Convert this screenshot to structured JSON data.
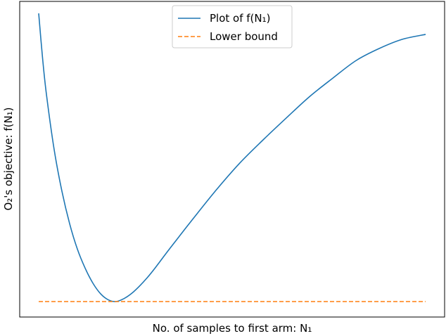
{
  "chart_data": {
    "type": "line",
    "xlabel": "No. of samples to first arm: N₁",
    "ylabel": "O₂'s objective: f(N₁)",
    "xticks": [],
    "yticks": [],
    "grid": false,
    "legend_position": "top-center",
    "xlim": [
      0,
      1
    ],
    "ylim": [
      0,
      1
    ],
    "x": [
      0.0,
      0.01,
      0.02,
      0.04,
      0.06,
      0.08,
      0.1,
      0.12,
      0.14,
      0.16,
      0.18,
      0.2,
      0.22,
      0.24,
      0.26,
      0.28,
      0.3,
      0.34,
      0.4,
      0.46,
      0.52,
      0.58,
      0.64,
      0.7,
      0.76,
      0.82,
      0.88,
      0.94,
      1.0
    ],
    "series": [
      {
        "name": "Plot of f(N₁)",
        "style": "solid",
        "color": "#1f77b4",
        "values": [
          1.0,
          0.845,
          0.719,
          0.527,
          0.383,
          0.27,
          0.182,
          0.116,
          0.064,
          0.027,
          0.006,
          0.0,
          0.01,
          0.028,
          0.053,
          0.082,
          0.115,
          0.186,
          0.289,
          0.389,
          0.481,
          0.561,
          0.637,
          0.711,
          0.775,
          0.836,
          0.878,
          0.91,
          0.927
        ]
      },
      {
        "name": "Lower bound",
        "style": "dashed",
        "color": "#ff7f0e",
        "values": [
          0.0,
          0.0,
          0.0,
          0.0,
          0.0,
          0.0,
          0.0,
          0.0,
          0.0,
          0.0,
          0.0,
          0.0,
          0.0,
          0.0,
          0.0,
          0.0,
          0.0,
          0.0,
          0.0,
          0.0,
          0.0,
          0.0,
          0.0,
          0.0,
          0.0,
          0.0,
          0.0,
          0.0,
          0.0
        ]
      }
    ]
  }
}
